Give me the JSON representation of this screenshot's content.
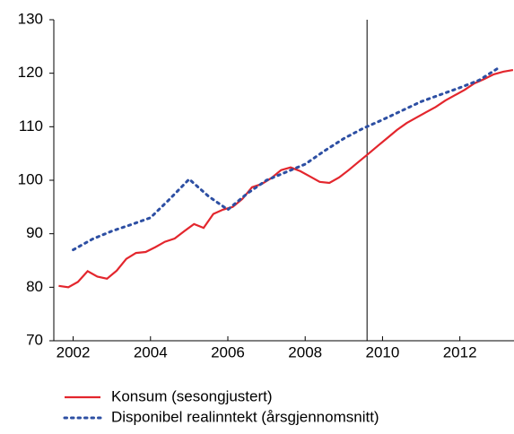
{
  "chart_data": {
    "type": "line",
    "xlim": [
      2001.5,
      2013.4
    ],
    "xticks": [
      2002,
      2004,
      2006,
      2008,
      2010,
      2012
    ],
    "ylim": [
      70,
      130
    ],
    "yticks": [
      70,
      80,
      90,
      100,
      110,
      120,
      130
    ],
    "vline": 2009.6,
    "series": [
      {
        "name": "Konsum (sesongjustert)",
        "color": "#e3262d",
        "style": "solid",
        "x": [
          2001.625,
          2001.875,
          2002.125,
          2002.375,
          2002.625,
          2002.875,
          2003.125,
          2003.375,
          2003.625,
          2003.875,
          2004.125,
          2004.375,
          2004.625,
          2004.875,
          2005.125,
          2005.375,
          2005.625,
          2005.875,
          2006.125,
          2006.375,
          2006.625,
          2006.875,
          2007.125,
          2007.375,
          2007.625,
          2007.875,
          2008.125,
          2008.375,
          2008.625,
          2008.875,
          2009.125,
          2009.375,
          2009.625,
          2009.875,
          2010.125,
          2010.375,
          2010.625,
          2010.875,
          2011.125,
          2011.375,
          2011.625,
          2011.875,
          2012.125,
          2012.375,
          2012.625,
          2012.875,
          2013.125,
          2013.375
        ],
        "values": [
          80.25,
          80.0,
          81.0,
          83.0,
          82.0,
          81.6,
          83.1,
          85.3,
          86.4,
          86.6,
          87.5,
          88.5,
          89.1,
          90.5,
          91.8,
          91.1,
          93.7,
          94.5,
          95.0,
          96.5,
          98.7,
          99.3,
          100.4,
          101.9,
          102.4,
          101.7,
          100.7,
          99.7,
          99.5,
          100.5,
          101.9,
          103.4,
          104.9,
          106.4,
          107.9,
          109.4,
          110.7,
          111.7,
          112.7,
          113.7,
          114.9,
          115.9,
          116.9,
          118.1,
          118.9,
          119.8,
          120.3,
          120.6
        ]
      },
      {
        "name": "Disponibel realinntekt (årsgjennomsnitt)",
        "color": "#2d4fa3",
        "style": "dotted",
        "x": [
          2002.0,
          2002.5,
          2003.0,
          2003.5,
          2004.0,
          2004.5,
          2005.0,
          2005.5,
          2006.0,
          2006.5,
          2007.0,
          2007.5,
          2008.0,
          2008.5,
          2009.0,
          2009.5,
          2010.0,
          2010.5,
          2011.0,
          2011.5,
          2012.0,
          2012.5,
          2013.0
        ],
        "values": [
          87.0,
          89.0,
          90.5,
          91.7,
          93.0,
          96.5,
          100.2,
          97.0,
          94.5,
          97.5,
          100.0,
          101.5,
          103.0,
          105.5,
          107.8,
          109.7,
          111.3,
          113.0,
          114.7,
          116.0,
          117.3,
          118.7,
          121.0
        ]
      }
    ]
  }
}
